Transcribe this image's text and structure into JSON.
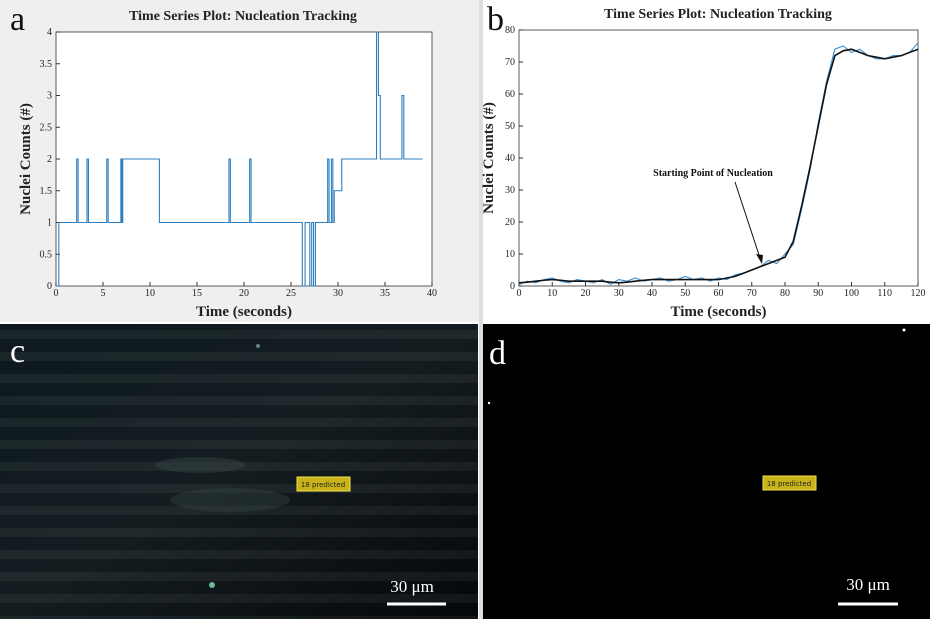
{
  "chart_data": [
    {
      "type": "line",
      "panel_label": "a",
      "title": "Time Series Plot: Nucleation Tracking",
      "x_label": "Time (seconds)",
      "y_label": "Nuclei Counts (#)",
      "x": [
        0,
        0.3,
        0.3,
        2.2,
        2.2,
        2.35,
        2.35,
        3.3,
        3.3,
        3.45,
        3.45,
        5.4,
        5.4,
        5.55,
        5.55,
        6.9,
        6.9,
        7.0,
        7.0,
        7.1,
        7.1,
        11,
        11,
        18.4,
        18.4,
        18.55,
        18.55,
        20.6,
        20.6,
        20.75,
        20.75,
        26.2,
        26.2,
        26.5,
        26.5,
        27.0,
        27.0,
        27.2,
        27.2,
        27.4,
        27.4,
        27.6,
        27.6,
        28.9,
        28.9,
        29.05,
        29.05,
        29.3,
        29.3,
        29.45,
        29.45,
        29.6,
        29.6,
        30.4,
        30.4,
        34.1,
        34.1,
        34.3,
        34.3,
        34.5,
        34.5,
        36.8,
        36.8,
        37.0,
        37.0,
        39
      ],
      "series": [
        {
          "color": "#2f7fbf",
          "values": [
            0,
            0,
            1,
            1,
            2,
            2,
            1,
            1,
            2,
            2,
            1,
            1,
            2,
            2,
            1,
            1,
            2,
            2,
            1,
            1,
            2,
            2,
            1,
            1,
            2,
            2,
            1,
            1,
            2,
            2,
            1,
            1,
            0,
            0,
            1,
            1,
            0,
            0,
            1,
            1,
            0,
            0,
            1,
            1,
            2,
            2,
            1,
            1,
            2,
            2,
            1,
            1,
            1.5,
            1.5,
            2,
            2,
            4,
            4,
            3,
            3,
            2,
            2,
            3,
            3,
            2,
            2
          ]
        }
      ],
      "xlim": [
        0,
        40
      ],
      "ylim": [
        0,
        4
      ],
      "xticks": [
        0,
        5,
        10,
        15,
        20,
        25,
        30,
        35,
        40
      ],
      "yticks": [
        0,
        0.5,
        1,
        1.5,
        2,
        2.5,
        3,
        3.5,
        4
      ]
    },
    {
      "type": "line",
      "panel_label": "b",
      "title": "Time Series Plot: Nucleation Tracking",
      "x_label": "Time (seconds)",
      "y_label": "Nuclei Counts (#)",
      "annotations": [
        "Starting Point of Nucleation"
      ],
      "x": [
        0,
        2.5,
        5,
        7.5,
        10,
        12.5,
        15,
        17.5,
        20,
        22.5,
        25,
        27.5,
        30,
        32.5,
        35,
        37.5,
        40,
        42.5,
        45,
        47.5,
        50,
        52.5,
        55,
        57.5,
        60,
        62.5,
        65,
        67.5,
        70,
        72.5,
        75,
        77.5,
        80,
        82.5,
        85,
        87.5,
        90,
        92.5,
        95,
        97.5,
        100,
        102.5,
        105,
        107.5,
        110,
        112.5,
        115,
        117.5,
        120
      ],
      "series": [
        {
          "color": "#3d8fd1",
          "values": [
            0.5,
            1.5,
            1,
            2,
            2.5,
            1.5,
            1,
            2,
            1.5,
            1,
            2,
            0.5,
            2,
            1.5,
            2.5,
            1.5,
            2,
            2.5,
            1.5,
            2,
            3,
            2,
            2.5,
            1.5,
            2.5,
            2,
            3.5,
            4,
            5,
            6,
            8,
            7,
            10,
            13,
            24,
            36,
            51,
            64,
            74,
            75,
            73,
            74,
            72,
            71,
            71,
            72,
            72,
            73,
            76
          ]
        },
        {
          "color": "#111111",
          "values": [
            1,
            1.2,
            1.5,
            1.8,
            2,
            1.8,
            1.5,
            1.5,
            1.5,
            1.5,
            1.5,
            1.2,
            1,
            1.2,
            1.5,
            1.8,
            2,
            2,
            2,
            2,
            2,
            2,
            2,
            2,
            2,
            2.5,
            3,
            4,
            5,
            6,
            7,
            8,
            9,
            14,
            25,
            37,
            50,
            63,
            72,
            73.5,
            74,
            73,
            72,
            71.5,
            71,
            71.5,
            72,
            73,
            74
          ]
        }
      ],
      "xlim": [
        0,
        120
      ],
      "ylim": [
        0,
        80
      ],
      "xticks": [
        0,
        10,
        20,
        30,
        40,
        50,
        60,
        70,
        80,
        90,
        100,
        110,
        120
      ],
      "yticks": [
        0,
        10,
        20,
        30,
        40,
        50,
        60,
        70,
        80
      ]
    }
  ],
  "images": [
    {
      "panel_label": "c",
      "annotation": "18 predicted",
      "scale_bar": "30 μm"
    },
    {
      "panel_label": "d",
      "annotation": "18 predicted",
      "scale_bar": "30 μm"
    }
  ]
}
